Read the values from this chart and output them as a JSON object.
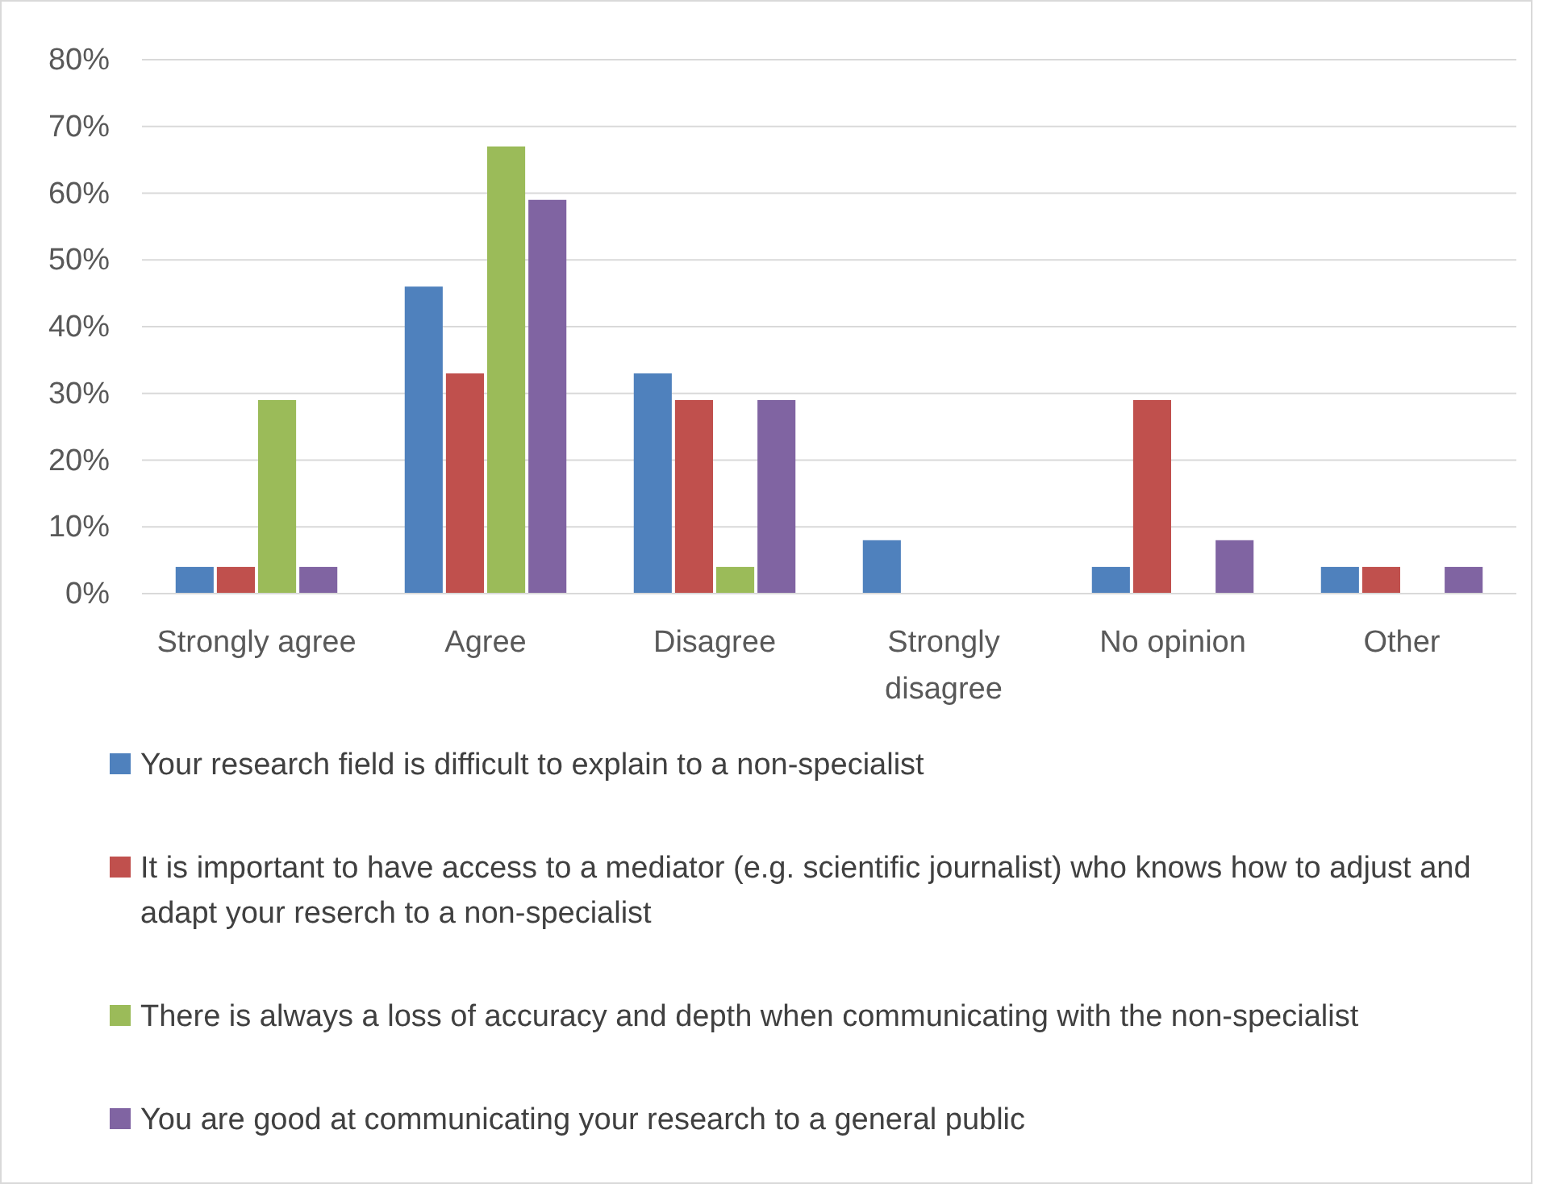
{
  "chart_data": {
    "type": "bar",
    "categories": [
      "Strongly agree",
      "Agree",
      "Disagree",
      "Strongly disagree",
      "No opinion",
      "Other"
    ],
    "series": [
      {
        "name": "Your research field is difficult to explain to a non-specialist",
        "color": "#4f81bd",
        "values": [
          4,
          46,
          33,
          8,
          4,
          4
        ]
      },
      {
        "name": "It is important to have access to a mediator (e.g. scientific journalist) who knows how to adjust and adapt your reserch to a non-specialist",
        "color": "#c0504d",
        "values": [
          4,
          33,
          29,
          0,
          29,
          4
        ]
      },
      {
        "name": "There is always a loss of accuracy and depth when communicating with the non-specialist",
        "color": "#9bbb59",
        "values": [
          29,
          67,
          4,
          0,
          0,
          0
        ]
      },
      {
        "name": "You are good at communicating your research to a general public",
        "color": "#8064a2",
        "values": [
          4,
          59,
          29,
          0,
          8,
          4
        ]
      }
    ],
    "ylim": [
      0,
      80
    ],
    "yticks": [
      {
        "value": 0,
        "label": "0%"
      },
      {
        "value": 10,
        "label": "10%"
      },
      {
        "value": 20,
        "label": "20%"
      },
      {
        "value": 30,
        "label": "30%"
      },
      {
        "value": 40,
        "label": "40%"
      },
      {
        "value": 50,
        "label": "50%"
      },
      {
        "value": 60,
        "label": "60%"
      },
      {
        "value": 70,
        "label": "70%"
      },
      {
        "value": 80,
        "label": "80%"
      }
    ],
    "grid": "y",
    "legend": "bottom"
  }
}
